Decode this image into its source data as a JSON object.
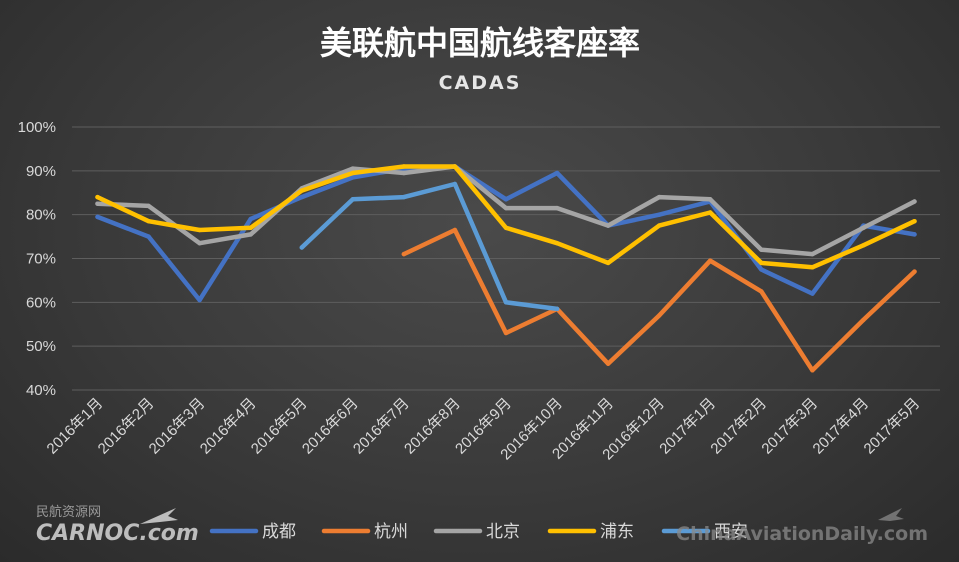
{
  "chart_data": {
    "type": "line",
    "title": "美联航中国航线客座率",
    "subtitle": "CADAS",
    "categories": [
      "2016年1月",
      "2016年2月",
      "2016年3月",
      "2016年4月",
      "2016年5月",
      "2016年6月",
      "2016年7月",
      "2016年8月",
      "2016年9月",
      "2016年10月",
      "2016年11月",
      "2016年12月",
      "2017年1月",
      "2017年2月",
      "2017年3月",
      "2017年4月",
      "2017年5月"
    ],
    "y_ticks": [
      "40%",
      "50%",
      "60%",
      "70%",
      "80%",
      "90%",
      "100%"
    ],
    "ylim": [
      40,
      100
    ],
    "grid": true,
    "legend_position": "bottom",
    "series": [
      {
        "name": "成都",
        "color": "#4472C4",
        "values": [
          79.5,
          75,
          60.5,
          79,
          84,
          88.5,
          90.5,
          91,
          83.5,
          89.5,
          77.5,
          80,
          83,
          67.5,
          62,
          77.5,
          75.5
        ]
      },
      {
        "name": "杭州",
        "color": "#ED7D31",
        "values": [
          null,
          null,
          null,
          null,
          null,
          null,
          71,
          76.5,
          53,
          58.5,
          46,
          57,
          69.5,
          62.5,
          44.5,
          56,
          67
        ]
      },
      {
        "name": "北京",
        "color": "#A5A5A5",
        "values": [
          82.5,
          82,
          73.5,
          75.5,
          86,
          90.5,
          89.5,
          91,
          81.5,
          81.5,
          77.5,
          84,
          83.5,
          72,
          71,
          77,
          83
        ]
      },
      {
        "name": "浦东",
        "color": "#FFC000",
        "values": [
          84,
          78.5,
          76.5,
          77,
          85.5,
          89.5,
          91,
          91,
          77,
          73.5,
          69,
          77.5,
          80.5,
          69,
          68,
          73,
          78.5
        ]
      },
      {
        "name": "西安",
        "color": "#5B9BD5",
        "values": [
          null,
          null,
          null,
          null,
          72.5,
          83.5,
          84,
          87,
          60,
          58.5,
          null,
          null,
          null,
          null,
          null,
          null,
          null
        ]
      }
    ]
  },
  "watermark_left": {
    "cn": "民航资源网",
    "logo": "CARNOC.com"
  },
  "watermark_right": "ChinaAviationDaily.com"
}
